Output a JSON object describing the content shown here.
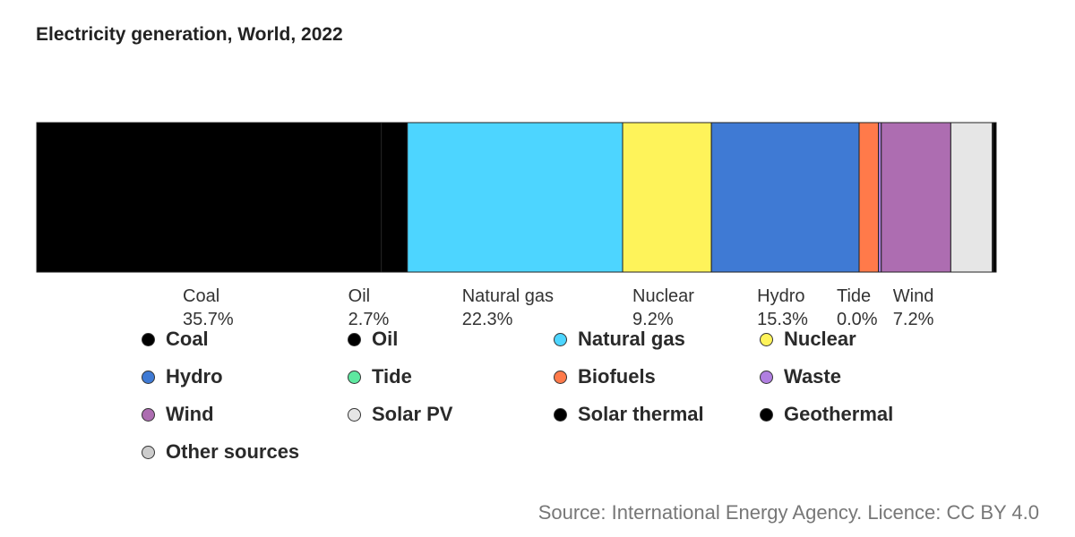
{
  "chart_data": {
    "type": "bar",
    "orientation": "horizontal-stacked-100",
    "title": "Electricity generation, World, 2022",
    "source": "Source: International Energy Agency. Licence: CC BY 4.0",
    "unit": "%",
    "segments": [
      {
        "name": "Coal",
        "value": 35.7,
        "label": "35.7%",
        "color": "#000000",
        "show_label": true
      },
      {
        "name": "Oil",
        "value": 2.7,
        "label": "2.7%",
        "color": "#000000",
        "show_label": true
      },
      {
        "name": "Natural gas",
        "value": 22.3,
        "label": "22.3%",
        "color": "#4dd5ff",
        "show_label": true
      },
      {
        "name": "Nuclear",
        "value": 9.2,
        "label": "9.2%",
        "color": "#fef35a",
        "show_label": true
      },
      {
        "name": "Hydro",
        "value": 15.3,
        "label": "15.3%",
        "color": "#3f7ad4",
        "show_label": true
      },
      {
        "name": "Tide",
        "value": 0.0,
        "label": "0.0%",
        "color": "#5ee8a0",
        "show_label": true
      },
      {
        "name": "Biofuels",
        "value": 2.0,
        "label": "",
        "color": "#ff7a4a",
        "show_label": false
      },
      {
        "name": "Waste",
        "value": 0.3,
        "label": "",
        "color": "#b07fe0",
        "show_label": false
      },
      {
        "name": "Wind",
        "value": 7.2,
        "label": "7.2%",
        "color": "#ad6db1",
        "show_label": true
      },
      {
        "name": "Solar PV",
        "value": 4.3,
        "label": "",
        "color": "#e6e6e6",
        "show_label": false
      },
      {
        "name": "Solar thermal",
        "value": 0.1,
        "label": "",
        "color": "#000000",
        "show_label": false
      },
      {
        "name": "Geothermal",
        "value": 0.3,
        "label": "",
        "color": "#000000",
        "show_label": false
      },
      {
        "name": "Other sources",
        "value": 0.0,
        "label": "",
        "color": "#cccccc",
        "show_label": false
      }
    ],
    "legend": [
      {
        "label": "Coal",
        "color": "#000000"
      },
      {
        "label": "Oil",
        "color": "#000000"
      },
      {
        "label": "Natural gas",
        "color": "#4dd5ff"
      },
      {
        "label": "Nuclear",
        "color": "#fef35a"
      },
      {
        "label": "Hydro",
        "color": "#3f7ad4"
      },
      {
        "label": "Tide",
        "color": "#5ee8a0"
      },
      {
        "label": "Biofuels",
        "color": "#ff7a4a"
      },
      {
        "label": "Waste",
        "color": "#b07fe0"
      },
      {
        "label": "Wind",
        "color": "#ad6db1"
      },
      {
        "label": "Solar PV",
        "color": "#e6e6e6"
      },
      {
        "label": "Solar thermal",
        "color": "#000000"
      },
      {
        "label": "Geothermal",
        "color": "#000000"
      },
      {
        "label": "Other sources",
        "color": "#cccccc"
      }
    ]
  }
}
